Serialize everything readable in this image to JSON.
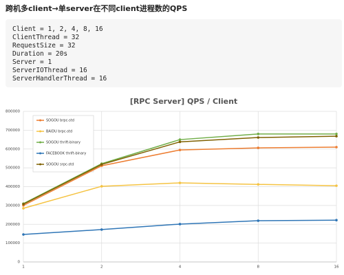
{
  "heading": "跨机多client→单server在不同client进程数的QPS",
  "code": {
    "lines": [
      "Client = 1, 2, 4, 8, 16",
      "ClientThread = 32",
      "RequestSize = 32",
      "Duration = 20s",
      "Server = 1",
      "ServerIOThread = 16",
      "ServerHandlerThread = 16"
    ]
  },
  "chart_data": {
    "type": "line",
    "title": "[RPC Server] QPS / Client",
    "categories": [
      "1",
      "2",
      "4",
      "8",
      "16"
    ],
    "ylim": [
      0,
      800000
    ],
    "yticks": [
      0,
      100000,
      200000,
      300000,
      400000,
      500000,
      600000,
      700000,
      800000
    ],
    "grid": true,
    "legend": "top-left",
    "series": [
      {
        "name": "SOGOU brpc-std",
        "color": "#ed7d31",
        "values": [
          300000,
          511000,
          595000,
          606000,
          610000
        ]
      },
      {
        "name": "BAIDU brpc-std",
        "color": "#f5c342",
        "values": [
          285000,
          402000,
          420000,
          412000,
          405000
        ]
      },
      {
        "name": "SOGOU thrift-binary",
        "color": "#70ad47",
        "values": [
          310000,
          522000,
          650000,
          680000,
          680000
        ]
      },
      {
        "name": "FACEBOOK thrift-binary",
        "color": "#2e75b6",
        "values": [
          146000,
          172000,
          201000,
          219000,
          222000
        ]
      },
      {
        "name": "SOGOU srpc-std",
        "color": "#7f6000",
        "values": [
          307000,
          518000,
          638000,
          661000,
          668000
        ]
      }
    ]
  }
}
